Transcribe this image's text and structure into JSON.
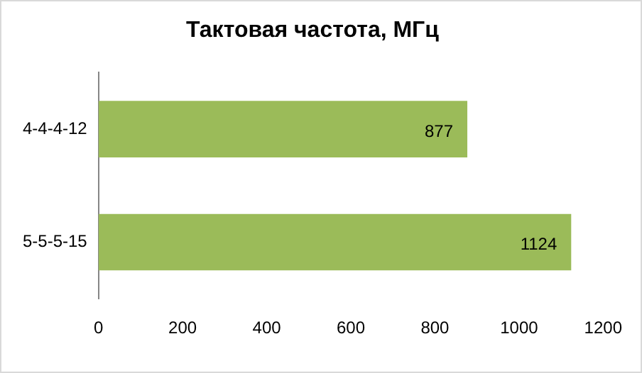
{
  "chart_data": {
    "type": "bar",
    "orientation": "horizontal",
    "title": "Тактовая частота, МГц",
    "categories": [
      "4-4-4-12",
      "5-5-5-15"
    ],
    "values": [
      877,
      1124
    ],
    "color": "#9bbb59",
    "xlim": [
      0,
      1200
    ],
    "xticks": [
      0,
      200,
      400,
      600,
      800,
      1000,
      1200
    ],
    "grid": false,
    "legend": false,
    "data_labels": true
  }
}
